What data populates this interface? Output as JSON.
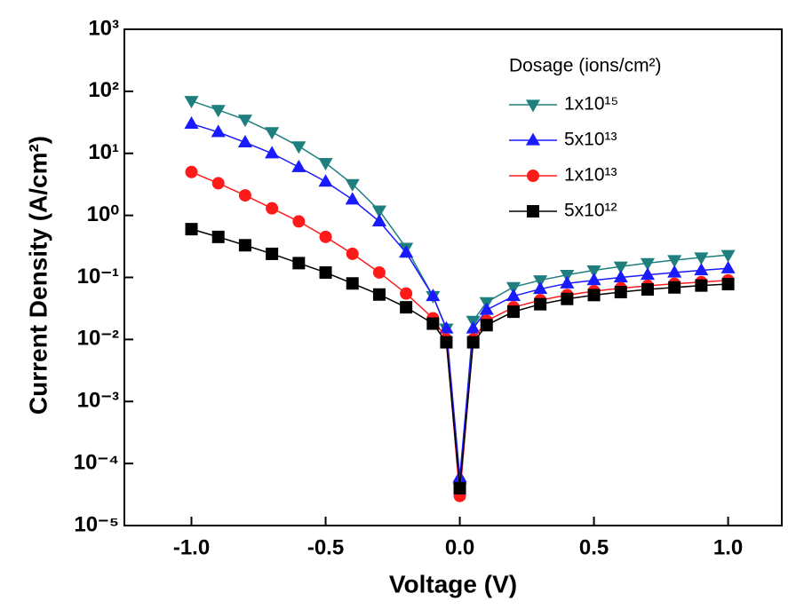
{
  "chart_data": {
    "type": "line",
    "x_label": "Voltage (V)",
    "y_label": "Current Density (A/cm²)",
    "legend_title": "Dosage (ions/cm²)",
    "legend": "upper right",
    "ylog": true,
    "xlim": [
      -1.25,
      1.2
    ],
    "ylim": [
      1e-05,
      1000
    ],
    "xticks": [
      {
        "value": -1,
        "label": "-1.0"
      },
      -0.5,
      {
        "value": 0,
        "label": "0.0"
      },
      0.5,
      {
        "value": 1,
        "label": "1.0"
      }
    ],
    "yticks": [
      {
        "value": 1e-05,
        "label": "10⁻⁵"
      },
      {
        "value": 0.0001,
        "label": "10⁻⁴"
      },
      {
        "value": 0.001,
        "label": "10⁻³"
      },
      {
        "value": 0.01,
        "label": "10⁻²"
      },
      {
        "value": 0.1,
        "label": "10⁻¹"
      },
      {
        "value": 1,
        "label": "10⁰"
      },
      {
        "value": 10,
        "label": "10¹"
      },
      {
        "value": 100,
        "label": "10²"
      },
      {
        "value": 1000,
        "label": "10³"
      }
    ],
    "x": [
      -1,
      -0.9,
      -0.8,
      -0.7,
      -0.6,
      -0.5,
      -0.4,
      -0.3,
      -0.2,
      -0.1,
      -0.05,
      0,
      0.05,
      0.1,
      0.2,
      0.3,
      0.4,
      0.5,
      0.6,
      0.7,
      0.8,
      0.9,
      1
    ],
    "series": [
      {
        "name": "1x10¹⁵",
        "color": "#1f7f7f",
        "marker": "triangle-down",
        "values": [
          70,
          50,
          35,
          22,
          13,
          7,
          3.2,
          1.2,
          0.3,
          0.05,
          0.015,
          4e-05,
          0.02,
          0.04,
          0.07,
          0.09,
          0.11,
          0.13,
          0.15,
          0.17,
          0.19,
          0.21,
          0.23
        ]
      },
      {
        "name": "5x10¹³",
        "color": "#1a1aff",
        "marker": "triangle-up",
        "values": [
          30,
          22,
          15,
          10,
          6,
          3.5,
          1.8,
          0.8,
          0.25,
          0.05,
          0.015,
          6e-05,
          0.015,
          0.03,
          0.05,
          0.065,
          0.08,
          0.09,
          0.1,
          0.11,
          0.12,
          0.13,
          0.14
        ]
      },
      {
        "name": "1x10¹³",
        "color": "#ff1a1a",
        "marker": "circle",
        "values": [
          5,
          3.3,
          2.1,
          1.3,
          0.8,
          0.45,
          0.24,
          0.12,
          0.055,
          0.022,
          0.01,
          3e-05,
          0.01,
          0.02,
          0.033,
          0.043,
          0.052,
          0.06,
          0.067,
          0.073,
          0.079,
          0.084,
          0.09
        ]
      },
      {
        "name": "5x10¹²",
        "color": "#000000",
        "marker": "square",
        "values": [
          0.6,
          0.45,
          0.33,
          0.24,
          0.17,
          0.12,
          0.08,
          0.053,
          0.033,
          0.018,
          0.009,
          4e-05,
          0.009,
          0.017,
          0.028,
          0.037,
          0.045,
          0.052,
          0.058,
          0.064,
          0.069,
          0.074,
          0.078
        ]
      }
    ]
  }
}
